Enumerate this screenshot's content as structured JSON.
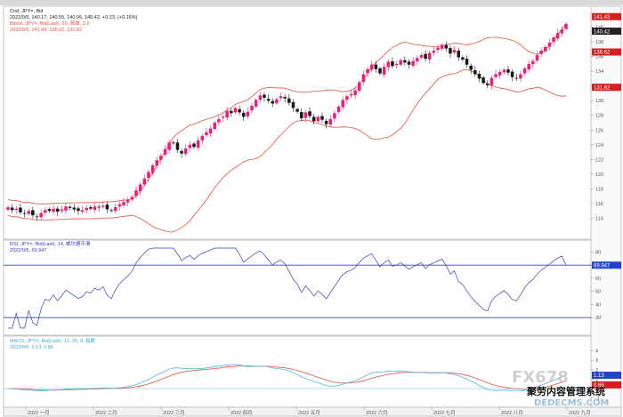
{
  "header": {
    "symbol": "Cnd, JPY=, Bid",
    "ohlc": "2022/9/5, 140.17, 140.55, 140.06, 140.42, +0.23, (+0.16%)",
    "bb_name": "Blend, JPY=, Bid(Last), 20, 简单, 2.0",
    "bb_values": "2022/9/5, 141.43, 136.62, 131.82"
  },
  "rsi_header": {
    "name": "RSI, JPY=, Bid(Last), 14, 威尔德平滑",
    "value": "2022/9/5, 69.947"
  },
  "macd_header": {
    "name": "MACD, JPY=, Bid(Last), 12, 26, 9, 指数",
    "value": "2022/9/5, 1.13, 0.86"
  },
  "price_tags": [
    "141.43",
    "140.42",
    "136.62",
    "131.82"
  ],
  "rsi_tags": [
    "69.947"
  ],
  "macd_tags": [
    "1.13",
    "0.86"
  ],
  "x_labels": [
    "2022 一月",
    "2022 二月",
    "2022 三月",
    "2022 四月",
    "2022 五月",
    "2022 六月",
    "2022 七月",
    "2022 八月",
    "2022 九月"
  ],
  "watermark": {
    "brand": "FX678",
    "tagline": "聚劳内容管理系统",
    "site": "DEDECMS.COM"
  },
  "colors": {
    "bull_candle": "#e8207a",
    "bear_candle": "#1a1a1a",
    "bollinger": "#e8503a",
    "rsi_line": "#3344bb",
    "rsi_level": "#3344bb",
    "macd_line": "#4fb8e6",
    "macd_signal": "#e8503a",
    "tag_red": "#d61f1f",
    "tag_blue": "#2244cc",
    "tag_dark": "#222222"
  },
  "chart_data": {
    "type": "candlestick",
    "period": "daily",
    "instrument": "JPY=",
    "timeframe": [
      "2022 一月",
      "2022 九月"
    ],
    "price_ylim": [
      112,
      142
    ],
    "close_path": [
      115.5,
      115.1,
      115.3,
      114.8,
      114.6,
      115.0,
      114.4,
      114.2,
      114.7,
      115.1,
      115.0,
      115.3,
      114.9,
      115.2,
      115.6,
      115.4,
      115.2,
      115.0,
      115.1,
      115.4,
      115.3,
      115.6,
      115.5,
      115.7,
      115.2,
      115.0,
      115.5,
      115.9,
      116.2,
      116.5,
      116.9,
      117.8,
      118.6,
      119.4,
      120.3,
      121.2,
      121.9,
      122.5,
      123.4,
      124.3,
      124.2,
      123.3,
      122.8,
      123.5,
      124.0,
      123.7,
      124.6,
      125.2,
      125.7,
      126.2,
      127.0,
      127.5,
      127.8,
      128.6,
      128.3,
      129.0,
      128.4,
      127.8,
      128.5,
      129.3,
      130.1,
      130.7,
      130.4,
      130.0,
      129.6,
      130.2,
      130.6,
      130.3,
      129.7,
      129.0,
      128.5,
      127.6,
      128.4,
      127.9,
      127.2,
      127.8,
      127.4,
      126.8,
      127.5,
      128.3,
      129.2,
      130.1,
      130.6,
      130.9,
      131.4,
      132.5,
      133.6,
      134.3,
      134.9,
      134.3,
      133.7,
      134.6,
      135.3,
      134.7,
      135.0,
      135.5,
      135.2,
      134.9,
      135.4,
      135.8,
      136.2,
      135.7,
      136.5,
      136.8,
      137.2,
      137.6,
      137.1,
      136.4,
      136.9,
      135.9,
      135.6,
      134.9,
      134.2,
      133.6,
      133.0,
      132.4,
      132.1,
      133.1,
      133.6,
      133.9,
      134.2,
      133.8,
      133.2,
      133.0,
      133.6,
      134.4,
      135.0,
      135.4,
      136.2,
      136.8,
      137.3,
      137.9,
      138.6,
      139.2,
      139.7,
      140.42
    ],
    "bollinger": {
      "period": 20,
      "mult": 2.0,
      "last": {
        "upper": 141.43,
        "middle": 136.62,
        "lower": 131.82
      }
    },
    "rsi": {
      "period": 14,
      "levels": [
        70,
        30
      ],
      "ylim": [
        20,
        85
      ],
      "last": 69.947
    },
    "macd": {
      "params": [
        12,
        26,
        9
      ],
      "ylim": [
        -1.6,
        5.0
      ],
      "last": {
        "macd": 1.13,
        "signal": 0.86
      }
    }
  }
}
